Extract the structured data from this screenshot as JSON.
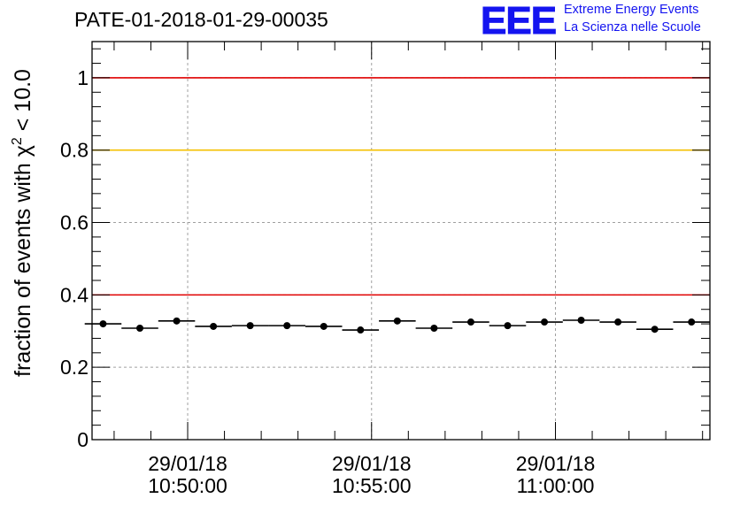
{
  "header": {
    "run_title": "PATE-01-2018-01-29-00035",
    "logo_text": "EEE",
    "brand_line1": "Extreme Energy Events",
    "brand_line2": "La Scienza nelle Scuole"
  },
  "chart_data": {
    "type": "scatter",
    "title": "PATE-01-2018-01-29-00035",
    "xlabel": "",
    "ylabel_parts": {
      "prefix": "fraction of events with ",
      "chi": "χ",
      "sup": "2",
      "suffix": " < 10.0"
    },
    "ylim": [
      0,
      1.1
    ],
    "yticks": [
      0,
      0.2,
      0.4,
      0.6,
      0.8,
      1
    ],
    "ytick_labels": [
      "0",
      "0.2",
      "0.4",
      "0.6",
      "0.8",
      "1"
    ],
    "xlim_minutes": [
      -2.6,
      14.2
    ],
    "xticks_minutes": [
      0,
      5,
      10
    ],
    "xtick_labels": [
      {
        "date": "29/01/18",
        "time": "10:50:00"
      },
      {
        "date": "29/01/18",
        "time": "10:55:00"
      },
      {
        "date": "29/01/18",
        "time": "11:00:00"
      }
    ],
    "grid": true,
    "reference_lines": [
      {
        "y": 1.0,
        "color": "#e00000"
      },
      {
        "y": 0.8,
        "color": "#f5c000"
      },
      {
        "y": 0.4,
        "color": "#e00000"
      }
    ],
    "series": [
      {
        "name": "fraction",
        "color": "#000000",
        "bin_halfwidth_minutes": 0.5,
        "x_minutes": [
          -2.3,
          -1.3,
          -0.3,
          0.7,
          1.7,
          2.7,
          3.7,
          4.7,
          5.7,
          6.7,
          7.7,
          8.7,
          9.7,
          10.7,
          11.7,
          12.7,
          13.7
        ],
        "values": [
          0.32,
          0.308,
          0.328,
          0.313,
          0.315,
          0.315,
          0.313,
          0.303,
          0.328,
          0.308,
          0.325,
          0.315,
          0.325,
          0.33,
          0.325,
          0.305,
          0.325
        ]
      }
    ]
  }
}
